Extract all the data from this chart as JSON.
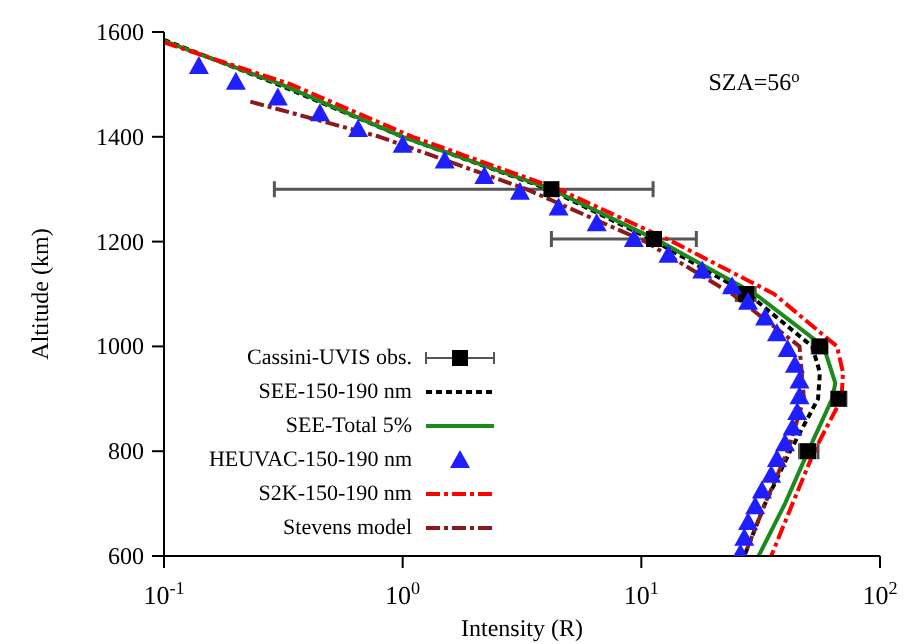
{
  "chart_data": {
    "type": "line",
    "xlabel": "Intensity (R)",
    "ylabel": "Altitude (km)",
    "annotations": [
      "SZA=56$^{o}$"
    ],
    "log": "x",
    "xlim": [
      0.1,
      100
    ],
    "xticks": [
      {
        "value": 0.1,
        "label": "10$^{-1}$"
      },
      {
        "value": 1,
        "label": "10$^{0}$"
      },
      {
        "value": 10,
        "label": "10$^{1}$"
      },
      {
        "value": 100,
        "label": "10$^{2}$"
      }
    ],
    "ylim": [
      600,
      1600
    ],
    "yticks": [
      600,
      800,
      1000,
      1200,
      1400,
      1600
    ],
    "grid": false,
    "legend": "bottom left",
    "series": [
      {
        "name": "Cassini-UVIS obs.",
        "type": "scatter",
        "marker": "square",
        "color": "#000000",
        "x": [
          4.2,
          11.3,
          27.5,
          56,
          67,
          50
        ],
        "values": [
          1300,
          1205,
          1100,
          1000,
          900,
          800
        ],
        "xerrors": [
          [
            0.29,
            11.2
          ],
          [
            4.2,
            17
          ],
          [
            25,
            30
          ],
          [
            52,
            60
          ],
          [
            63,
            72
          ],
          [
            46,
            55
          ]
        ]
      },
      {
        "name": "SEE-150-190 nm",
        "type": "line",
        "line_style": "dotted",
        "color": "#000000",
        "x": [
          0.1,
          0.3,
          1.0,
          4.1,
          11.5,
          28,
          52,
          56,
          55,
          42,
          33,
          27
        ],
        "values": [
          1585,
          1500,
          1400,
          1300,
          1200,
          1100,
          1000,
          950,
          900,
          800,
          700,
          600
        ]
      },
      {
        "name": "SEE-Total 5%",
        "type": "line",
        "line_style": "solid",
        "color": "#1a8a1a",
        "x": [
          0.1,
          0.31,
          1.0,
          4.2,
          12,
          30,
          58,
          65,
          63,
          50,
          40,
          31
        ],
        "values": [
          1583,
          1500,
          1400,
          1300,
          1200,
          1100,
          1000,
          930,
          900,
          800,
          700,
          600
        ]
      },
      {
        "name": "HEUVAC-150-190 nm",
        "type": "scatter",
        "marker": "triangle",
        "color": "#1e1eff",
        "x": [
          0.14,
          0.2,
          0.3,
          0.45,
          0.65,
          1,
          1.5,
          2.2,
          3.1,
          4.5,
          6.5,
          9.3,
          13,
          18,
          24,
          28,
          33,
          37,
          41,
          44,
          46,
          46,
          45,
          43,
          40,
          37,
          35,
          32,
          30,
          28,
          27,
          26
        ],
        "values": [
          1535,
          1505,
          1475,
          1445,
          1415,
          1385,
          1355,
          1325,
          1295,
          1265,
          1235,
          1205,
          1175,
          1145,
          1115,
          1085,
          1055,
          1025,
          995,
          965,
          935,
          905,
          875,
          845,
          815,
          785,
          755,
          725,
          695,
          665,
          635,
          605
        ]
      },
      {
        "name": "S2K-150-190 nm",
        "type": "line",
        "line_style": "dashed",
        "color": "#ff0000",
        "x": [
          0.1,
          0.34,
          1.1,
          4.5,
          13.5,
          36,
          66,
          70,
          69,
          53,
          43,
          35
        ],
        "values": [
          1580,
          1500,
          1400,
          1300,
          1200,
          1100,
          1000,
          950,
          900,
          800,
          700,
          600
        ]
      },
      {
        "name": "Stevens model",
        "type": "line",
        "line_style": "dashed",
        "color": "#8b1a1a",
        "x": [
          0.23,
          0.8,
          3.3,
          10.4,
          24,
          46,
          48,
          41,
          33,
          27
        ],
        "values": [
          1467,
          1400,
          1300,
          1200,
          1100,
          1000,
          900,
          800,
          700,
          600
        ]
      }
    ]
  }
}
